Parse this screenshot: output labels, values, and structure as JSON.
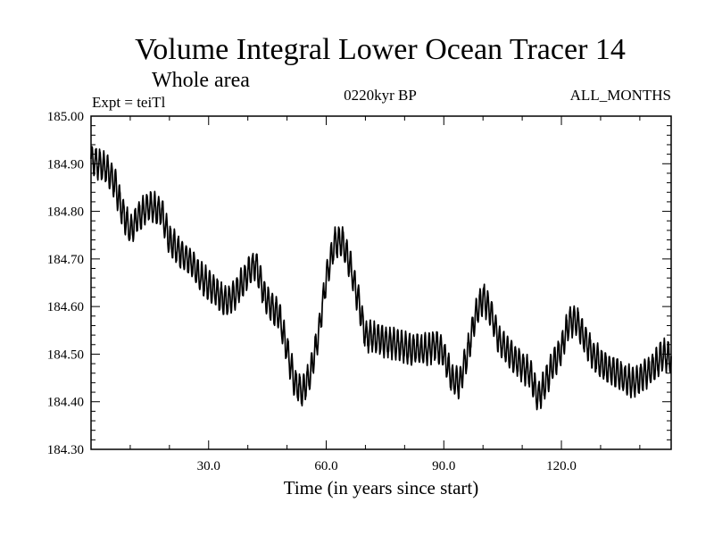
{
  "chart_data": {
    "type": "line",
    "title": "Volume Integral Lower Ocean Tracer 14",
    "subtitle": "Whole area",
    "experiment": "Expt = teiTl",
    "period": "0220kyr BP",
    "months": "ALL_MONTHS",
    "xlabel": "Time (in years since start)",
    "ylabel": "",
    "xlim": [
      0,
      148
    ],
    "ylim": [
      184.3,
      185.0
    ],
    "x_ticks": [
      30,
      60,
      90,
      120
    ],
    "x_tick_labels": [
      "30.0",
      "60.0",
      "90.0",
      "120.0"
    ],
    "y_ticks": [
      184.3,
      184.4,
      184.5,
      184.6,
      184.7,
      184.8,
      184.9,
      185.0
    ],
    "y_tick_labels": [
      "184.30",
      "184.40",
      "184.50",
      "184.60",
      "184.70",
      "184.80",
      "184.90",
      "185.00"
    ],
    "seasonal_amplitude": 0.03,
    "series": [
      {
        "name": "Volume Integral Lower Ocean Tracer 14",
        "color": "#000000",
        "trend_x": [
          0,
          2,
          4,
          6,
          8,
          10,
          12,
          15,
          18,
          20,
          23,
          26,
          28,
          31,
          33,
          35,
          37,
          40,
          42,
          44,
          46,
          48,
          50,
          52,
          54,
          56,
          58,
          60,
          62,
          64,
          66,
          68,
          70,
          74,
          78,
          82,
          86,
          88,
          90,
          92,
          94,
          96,
          98,
          100,
          102,
          104,
          108,
          112,
          114,
          116,
          118,
          120,
          122,
          124,
          126,
          128,
          130,
          134,
          138,
          142,
          144,
          146,
          148
        ],
        "trend_y": [
          184.91,
          184.9,
          184.89,
          184.86,
          184.8,
          184.76,
          184.79,
          184.81,
          184.8,
          184.74,
          184.71,
          184.69,
          184.66,
          184.64,
          184.62,
          184.61,
          184.63,
          184.67,
          184.69,
          184.63,
          184.6,
          184.58,
          184.51,
          184.44,
          184.42,
          184.46,
          184.54,
          184.66,
          184.73,
          184.74,
          184.69,
          184.62,
          184.54,
          184.53,
          184.52,
          184.51,
          184.51,
          184.52,
          184.5,
          184.45,
          184.44,
          184.5,
          184.58,
          184.62,
          184.59,
          184.53,
          184.49,
          184.46,
          184.41,
          184.44,
          184.48,
          184.51,
          184.57,
          184.57,
          184.53,
          184.5,
          184.48,
          184.46,
          184.44,
          184.46,
          184.48,
          184.5,
          184.49
        ]
      }
    ]
  }
}
